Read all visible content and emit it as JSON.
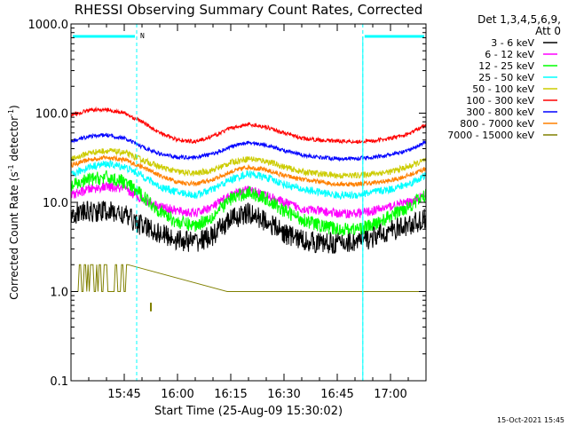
{
  "chart_data": {
    "type": "line",
    "title": "RHESSI Observing Summary Count Rates, Corrected",
    "xlabel": "Start Time (25-Aug-09 15:30:02)",
    "ylabel_main": "Corrected Count Rate (s",
    "ylabel_sup1": "-1",
    "ylabel_mid": " detector",
    "ylabel_sup2": "-1",
    "ylabel_end": ")",
    "y_scale": "log",
    "ylim": [
      0.1,
      1000
    ],
    "xlim_minutes": [
      0,
      100
    ],
    "x_ticks": [
      {
        "label": "15:45",
        "minute": 15
      },
      {
        "label": "16:00",
        "minute": 30
      },
      {
        "label": "16:15",
        "minute": 45
      },
      {
        "label": "16:30",
        "minute": 60
      },
      {
        "label": "16:45",
        "minute": 75
      },
      {
        "label": "17:00",
        "minute": 90
      }
    ],
    "y_ticks": [
      {
        "label": "1000.0",
        "value": 1000
      },
      {
        "label": "100.0",
        "value": 100
      },
      {
        "label": "10.0",
        "value": 10
      },
      {
        "label": "1.0",
        "value": 1
      },
      {
        "label": "0.1",
        "value": 0.1
      }
    ],
    "legend_header": [
      "Det 1,3,4,5,6,9,",
      "Att 0"
    ],
    "legend_position": "right",
    "timestamp": "15-Oct-2021 15:45",
    "night_flag": {
      "label": "N",
      "color": "#00ffff",
      "intervals": [
        [
          0,
          18.5
        ],
        [
          82.2,
          100
        ]
      ],
      "boundaries": [
        18.5,
        82.2,
        100
      ]
    },
    "series": [
      {
        "name": "3 - 6 keV",
        "color": "#000000",
        "noise": 0.28,
        "values": [
          7.5,
          7.8,
          8.0,
          7.2,
          5.5,
          4.5,
          3.8,
          3.6,
          4.2,
          6.5,
          7.5,
          6.2,
          4.5,
          3.8,
          3.5,
          3.5,
          3.6,
          4.0,
          4.8,
          5.5,
          6.5
        ]
      },
      {
        "name": "6 - 12 keV",
        "color": "#ff00ff",
        "noise": 0.12,
        "values": [
          12,
          14,
          15,
          14,
          11,
          9,
          8,
          7.5,
          9,
          12,
          14,
          12,
          10,
          8.5,
          8,
          7.5,
          7.5,
          8,
          9,
          10,
          12
        ]
      },
      {
        "name": "12 - 25 keV",
        "color": "#00ff00",
        "noise": 0.18,
        "values": [
          15,
          18,
          19,
          17,
          12,
          8,
          6,
          5.5,
          7,
          11,
          13,
          11,
          8,
          6.5,
          5.5,
          5,
          5,
          5.5,
          7,
          9,
          12
        ]
      },
      {
        "name": "25 - 50 keV",
        "color": "#00ffff",
        "noise": 0.1,
        "values": [
          20,
          25,
          27,
          25,
          20,
          15,
          13,
          12,
          14,
          18,
          21,
          19,
          16,
          14,
          13,
          12,
          12,
          13,
          14,
          16,
          20
        ]
      },
      {
        "name": "50 - 100 keV",
        "color": "#cccc00",
        "noise": 0.08,
        "values": [
          30,
          36,
          38,
          36,
          30,
          25,
          22,
          21,
          23,
          28,
          31,
          29,
          25,
          22,
          21,
          20,
          20,
          21,
          22,
          25,
          30
        ]
      },
      {
        "name": "100 - 300 keV",
        "color": "#ff0000",
        "noise": 0.05,
        "values": [
          95,
          108,
          110,
          100,
          80,
          60,
          50,
          48,
          55,
          68,
          75,
          70,
          60,
          52,
          50,
          49,
          48,
          49,
          52,
          58,
          75
        ]
      },
      {
        "name": "300 - 800 keV",
        "color": "#0000ff",
        "noise": 0.05,
        "values": [
          48,
          55,
          57,
          52,
          42,
          35,
          32,
          32,
          35,
          42,
          47,
          44,
          38,
          34,
          32,
          31,
          31,
          32,
          34,
          38,
          48
        ]
      },
      {
        "name": "800 - 7000 keV",
        "color": "#ff8000",
        "noise": 0.06,
        "values": [
          26,
          30,
          32,
          30,
          25,
          20,
          17,
          16,
          18,
          22,
          25,
          23,
          20,
          18,
          17,
          16,
          16,
          16.5,
          17.5,
          20,
          24
        ]
      },
      {
        "name": "7000 - 15000 keV",
        "color": "#808000",
        "noise": 0.0,
        "values": []
      }
    ]
  }
}
